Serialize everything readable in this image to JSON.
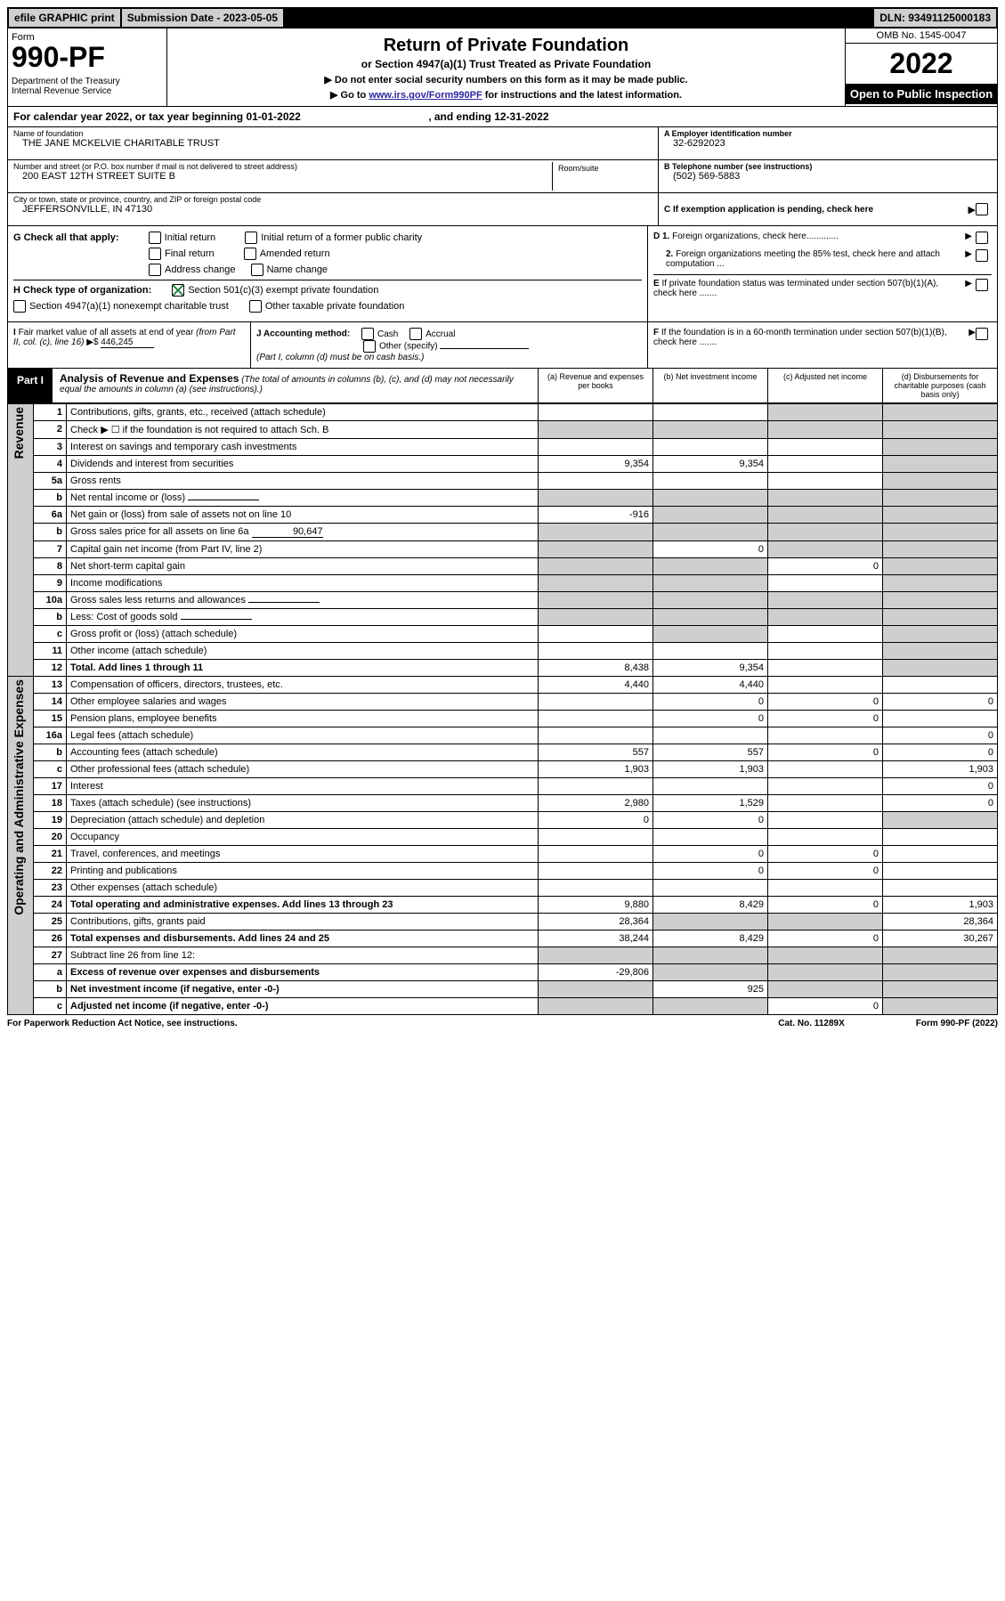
{
  "top_bar": {
    "efile": "efile GRAPHIC print",
    "submission": "Submission Date - 2023-05-05",
    "dln": "DLN: 93491125000183"
  },
  "header": {
    "form_word": "Form",
    "form_num": "990-PF",
    "dept": "Department of the Treasury\nInternal Revenue Service",
    "title": "Return of Private Foundation",
    "subtitle": "or Section 4947(a)(1) Trust Treated as Private Foundation",
    "instr1": "▶ Do not enter social security numbers on this form as it may be made public.",
    "instr2": "▶ Go to ",
    "instr_link": "www.irs.gov/Form990PF",
    "instr3": " for instructions and the latest information.",
    "omb": "OMB No. 1545-0047",
    "year": "2022",
    "open": "Open to Public Inspection"
  },
  "cal_year": {
    "prefix": "For calendar year 2022, or tax year beginning ",
    "begin": "01-01-2022",
    "mid": " , and ending ",
    "end": "12-31-2022"
  },
  "id": {
    "name_lbl": "Name of foundation",
    "name": "THE JANE MCKELVIE CHARITABLE TRUST",
    "addr_lbl": "Number and street (or P.O. box number if mail is not delivered to street address)",
    "addr": "200 EAST 12TH STREET SUITE B",
    "room_lbl": "Room/suite",
    "city_lbl": "City or town, state or province, country, and ZIP or foreign postal code",
    "city": "JEFFERSONVILLE, IN  47130",
    "ein_lbl": "A Employer identification number",
    "ein": "32-6292023",
    "tel_lbl": "B Telephone number (see instructions)",
    "tel": "(502) 569-5883",
    "c_lbl": "C If exemption application is pending, check here",
    "d1": "D 1. Foreign organizations, check here.............",
    "d2": "2. Foreign organizations meeting the 85% test, check here and attach computation ...",
    "e": "E If private foundation status was terminated under section 507(b)(1)(A), check here .......",
    "f": "F If the foundation is in a 60-month termination under section 507(b)(1)(B), check here ......."
  },
  "g": {
    "label": "G Check all that apply:",
    "initial": "Initial return",
    "initial_former": "Initial return of a former public charity",
    "final": "Final return",
    "amended": "Amended return",
    "address": "Address change",
    "name_change": "Name change"
  },
  "h": {
    "label": "H Check type of organization:",
    "opt1": "Section 501(c)(3) exempt private foundation",
    "opt2": "Section 4947(a)(1) nonexempt charitable trust",
    "opt3": "Other taxable private foundation"
  },
  "i": {
    "label": "I Fair market value of all assets at end of year (from Part II, col. (c), line 16) ▶$ ",
    "value": "446,245"
  },
  "j": {
    "label": "J Accounting method:",
    "cash": "Cash",
    "accrual": "Accrual",
    "other": "Other (specify)",
    "note": "(Part I, column (d) must be on cash basis.)"
  },
  "part1": {
    "label": "Part I",
    "title": "Analysis of Revenue and Expenses",
    "note": " (The total of amounts in columns (b), (c), and (d) may not necessarily equal the amounts in column (a) (see instructions).)",
    "col_a": "(a) Revenue and expenses per books",
    "col_b": "(b) Net investment income",
    "col_c": "(c) Adjusted net income",
    "col_d": "(d) Disbursements for charitable purposes (cash basis only)"
  },
  "side_labels": {
    "revenue": "Revenue",
    "expenses": "Operating and Administrative Expenses"
  },
  "rows": [
    {
      "n": "1",
      "t": "Contributions, gifts, grants, etc., received (attach schedule)",
      "a": "",
      "b": "",
      "c": "",
      "d": "",
      "shade_c": true,
      "shade_d": true
    },
    {
      "n": "2",
      "t": "Check ▶ ☐ if the foundation is not required to attach Sch. B",
      "a": "",
      "b": "",
      "c": "",
      "d": "",
      "shade_a": true,
      "shade_b": true,
      "shade_c": true,
      "shade_d": true
    },
    {
      "n": "3",
      "t": "Interest on savings and temporary cash investments",
      "a": "",
      "b": "",
      "c": "",
      "d": "",
      "shade_d": true
    },
    {
      "n": "4",
      "t": "Dividends and interest from securities",
      "a": "9,354",
      "b": "9,354",
      "c": "",
      "d": "",
      "shade_d": true
    },
    {
      "n": "5a",
      "t": "Gross rents",
      "a": "",
      "b": "",
      "c": "",
      "d": "",
      "shade_d": true
    },
    {
      "n": "b",
      "t": "Net rental income or (loss)",
      "a": "",
      "b": "",
      "c": "",
      "d": "",
      "shade_a": true,
      "shade_b": true,
      "shade_c": true,
      "shade_d": true,
      "inline": true
    },
    {
      "n": "6a",
      "t": "Net gain or (loss) from sale of assets not on line 10",
      "a": "-916",
      "b": "",
      "c": "",
      "d": "",
      "shade_b": true,
      "shade_c": true,
      "shade_d": true
    },
    {
      "n": "b",
      "t": "Gross sales price for all assets on line 6a",
      "a": "",
      "b": "",
      "c": "",
      "d": "",
      "inline": true,
      "inline_val": "90,647",
      "shade_a": true,
      "shade_b": true,
      "shade_c": true,
      "shade_d": true
    },
    {
      "n": "7",
      "t": "Capital gain net income (from Part IV, line 2)",
      "a": "",
      "b": "0",
      "c": "",
      "d": "",
      "shade_a": true,
      "shade_c": true,
      "shade_d": true
    },
    {
      "n": "8",
      "t": "Net short-term capital gain",
      "a": "",
      "b": "",
      "c": "0",
      "d": "",
      "shade_a": true,
      "shade_b": true,
      "shade_d": true
    },
    {
      "n": "9",
      "t": "Income modifications",
      "a": "",
      "b": "",
      "c": "",
      "d": "",
      "shade_a": true,
      "shade_b": true,
      "shade_d": true
    },
    {
      "n": "10a",
      "t": "Gross sales less returns and allowances",
      "a": "",
      "b": "",
      "c": "",
      "d": "",
      "inline": true,
      "shade_a": true,
      "shade_b": true,
      "shade_c": true,
      "shade_d": true
    },
    {
      "n": "b",
      "t": "Less: Cost of goods sold",
      "a": "",
      "b": "",
      "c": "",
      "d": "",
      "inline": true,
      "shade_a": true,
      "shade_b": true,
      "shade_c": true,
      "shade_d": true
    },
    {
      "n": "c",
      "t": "Gross profit or (loss) (attach schedule)",
      "a": "",
      "b": "",
      "c": "",
      "d": "",
      "shade_b": true,
      "shade_d": true
    },
    {
      "n": "11",
      "t": "Other income (attach schedule)",
      "a": "",
      "b": "",
      "c": "",
      "d": "",
      "shade_d": true
    },
    {
      "n": "12",
      "t": "Total. Add lines 1 through 11",
      "a": "8,438",
      "b": "9,354",
      "c": "",
      "d": "",
      "bold": true,
      "shade_d": true
    },
    {
      "n": "13",
      "t": "Compensation of officers, directors, trustees, etc.",
      "a": "4,440",
      "b": "4,440",
      "c": "",
      "d": ""
    },
    {
      "n": "14",
      "t": "Other employee salaries and wages",
      "a": "",
      "b": "0",
      "c": "0",
      "d": "0"
    },
    {
      "n": "15",
      "t": "Pension plans, employee benefits",
      "a": "",
      "b": "0",
      "c": "0",
      "d": ""
    },
    {
      "n": "16a",
      "t": "Legal fees (attach schedule)",
      "a": "",
      "b": "",
      "c": "",
      "d": "0"
    },
    {
      "n": "b",
      "t": "Accounting fees (attach schedule)",
      "a": "557",
      "b": "557",
      "c": "0",
      "d": "0"
    },
    {
      "n": "c",
      "t": "Other professional fees (attach schedule)",
      "a": "1,903",
      "b": "1,903",
      "c": "",
      "d": "1,903"
    },
    {
      "n": "17",
      "t": "Interest",
      "a": "",
      "b": "",
      "c": "",
      "d": "0"
    },
    {
      "n": "18",
      "t": "Taxes (attach schedule) (see instructions)",
      "a": "2,980",
      "b": "1,529",
      "c": "",
      "d": "0"
    },
    {
      "n": "19",
      "t": "Depreciation (attach schedule) and depletion",
      "a": "0",
      "b": "0",
      "c": "",
      "d": "",
      "shade_d": true
    },
    {
      "n": "20",
      "t": "Occupancy",
      "a": "",
      "b": "",
      "c": "",
      "d": ""
    },
    {
      "n": "21",
      "t": "Travel, conferences, and meetings",
      "a": "",
      "b": "0",
      "c": "0",
      "d": ""
    },
    {
      "n": "22",
      "t": "Printing and publications",
      "a": "",
      "b": "0",
      "c": "0",
      "d": ""
    },
    {
      "n": "23",
      "t": "Other expenses (attach schedule)",
      "a": "",
      "b": "",
      "c": "",
      "d": ""
    },
    {
      "n": "24",
      "t": "Total operating and administrative expenses. Add lines 13 through 23",
      "a": "9,880",
      "b": "8,429",
      "c": "0",
      "d": "1,903",
      "bold": true
    },
    {
      "n": "25",
      "t": "Contributions, gifts, grants paid",
      "a": "28,364",
      "b": "",
      "c": "",
      "d": "28,364",
      "shade_b": true,
      "shade_c": true
    },
    {
      "n": "26",
      "t": "Total expenses and disbursements. Add lines 24 and 25",
      "a": "38,244",
      "b": "8,429",
      "c": "0",
      "d": "30,267",
      "bold": true
    },
    {
      "n": "27",
      "t": "Subtract line 26 from line 12:",
      "a": "",
      "b": "",
      "c": "",
      "d": "",
      "shade_a": true,
      "shade_b": true,
      "shade_c": true,
      "shade_d": true
    },
    {
      "n": "a",
      "t": "Excess of revenue over expenses and disbursements",
      "a": "-29,806",
      "b": "",
      "c": "",
      "d": "",
      "bold": true,
      "shade_b": true,
      "shade_c": true,
      "shade_d": true
    },
    {
      "n": "b",
      "t": "Net investment income (if negative, enter -0-)",
      "a": "",
      "b": "925",
      "c": "",
      "d": "",
      "bold": true,
      "shade_a": true,
      "shade_c": true,
      "shade_d": true
    },
    {
      "n": "c",
      "t": "Adjusted net income (if negative, enter -0-)",
      "a": "",
      "b": "",
      "c": "0",
      "d": "",
      "bold": true,
      "shade_a": true,
      "shade_b": true,
      "shade_d": true
    }
  ],
  "footer": {
    "left": "For Paperwork Reduction Act Notice, see instructions.",
    "mid": "Cat. No. 11289X",
    "right": "Form 990-PF (2022)"
  }
}
